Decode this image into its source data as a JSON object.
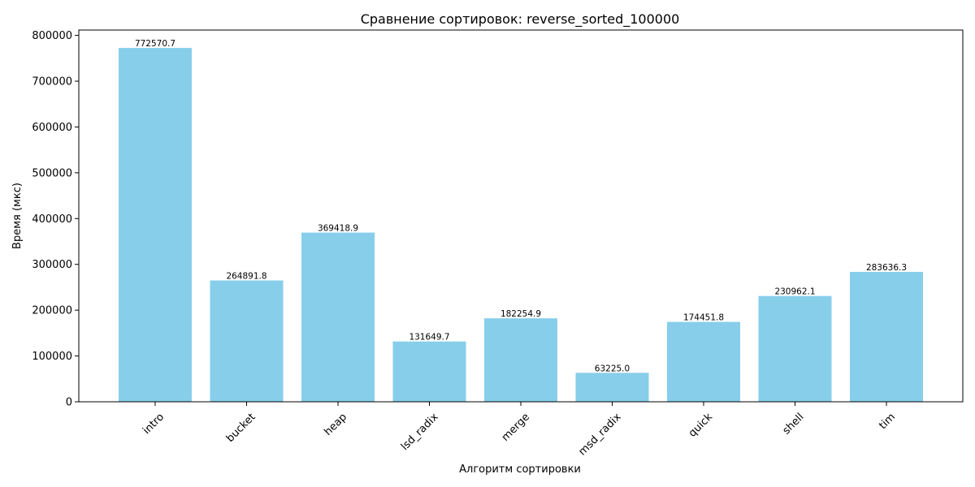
{
  "chart_data": {
    "type": "bar",
    "title": "Сравнение сортировок: reverse_sorted_100000",
    "xlabel": "Алгоритм сортировки",
    "ylabel": "Время (мкс)",
    "categories": [
      "intro",
      "bucket",
      "heap",
      "lsd_radix",
      "merge",
      "msd_radix",
      "quick",
      "shell",
      "tim"
    ],
    "values": [
      772570.7,
      264891.8,
      369418.9,
      131649.7,
      182254.9,
      63225.0,
      174451.8,
      230962.1,
      283636.3
    ],
    "value_labels": [
      "772570.7",
      "264891.8",
      "369418.9",
      "131649.7",
      "182254.9",
      "63225.0",
      "174451.8",
      "230962.1",
      "283636.3"
    ],
    "yticks": [
      0,
      100000,
      200000,
      300000,
      400000,
      500000,
      600000,
      700000,
      800000
    ],
    "ylim": [
      0,
      811699
    ],
    "grid": false,
    "colors": {
      "bar": "#87ceeb",
      "axis": "#000000",
      "text": "#000000"
    }
  }
}
